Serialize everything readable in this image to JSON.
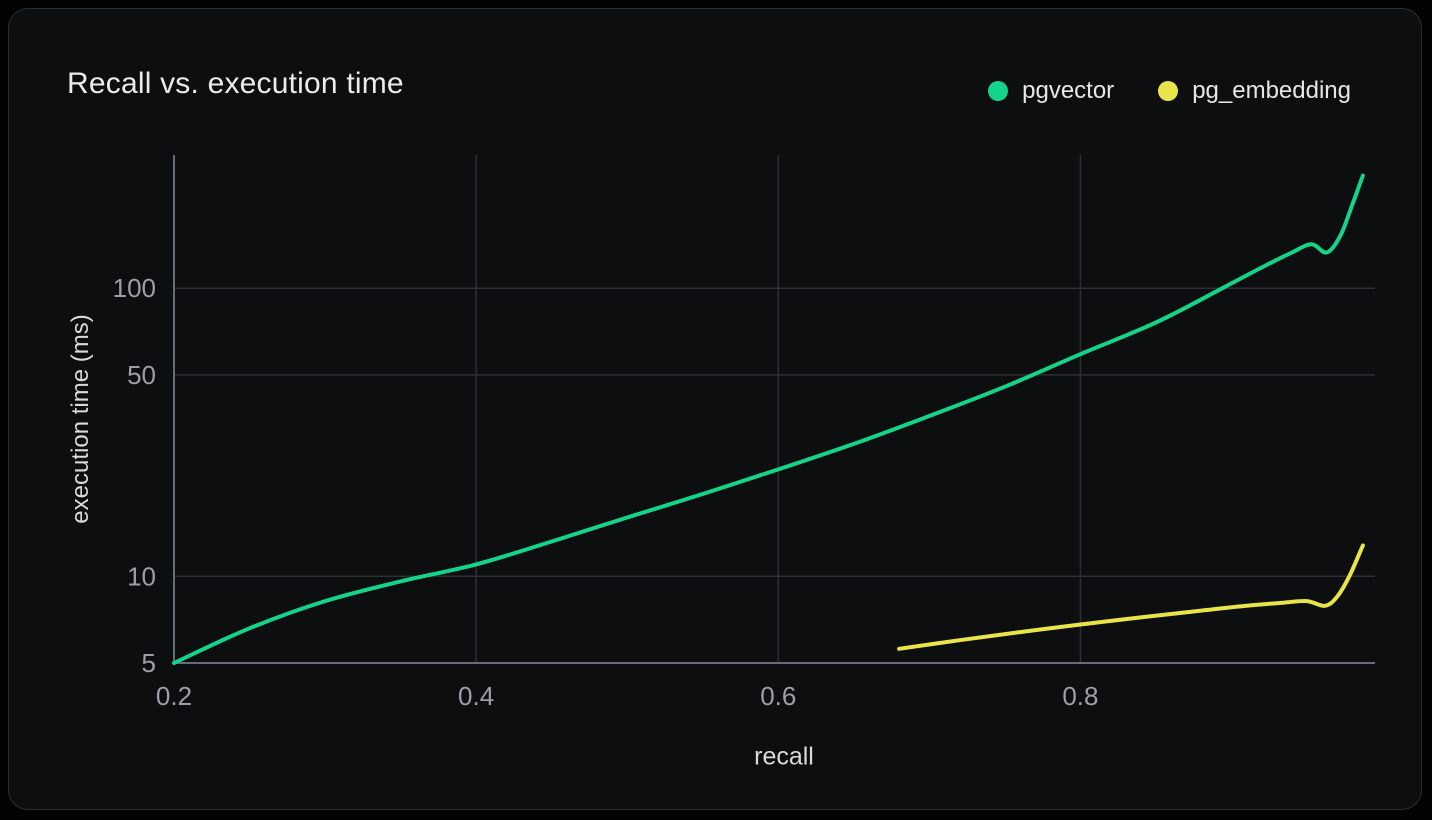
{
  "header": {
    "title": "Recall vs. execution time"
  },
  "legend": [
    {
      "label": "pgvector",
      "color": "#14d38b"
    },
    {
      "label": "pg_embedding",
      "color": "#e9e448"
    }
  ],
  "colors": {
    "page_background": "#030303",
    "card_background": "#0d0e0f",
    "card_border": "#2b2e31",
    "grid": "#2d3034",
    "axis": "#666d75",
    "tick_text": "#9aa0a6",
    "axis_title_text": "#d8dadc",
    "title_text": "#e9ebec"
  },
  "chart_data": {
    "type": "line",
    "title": "Recall vs. execution time",
    "xlabel": "recall",
    "ylabel": "execution time (ms)",
    "x_scale": "linear",
    "y_scale": "log",
    "xlim": [
      0.2,
      0.995
    ],
    "ylim": [
      5,
      290
    ],
    "x_ticks": [
      0.2,
      0.4,
      0.6,
      0.8
    ],
    "x_tick_labels": [
      "0.2",
      "0.4",
      "0.6",
      "0.8"
    ],
    "y_ticks": [
      5,
      10,
      50,
      100
    ],
    "y_tick_labels": [
      "5",
      "10",
      "50",
      "100"
    ],
    "grid": true,
    "legend_position": "top-right",
    "series": [
      {
        "name": "pgvector",
        "color": "#14d38b",
        "points": [
          [
            0.2,
            5.0
          ],
          [
            0.25,
            6.6
          ],
          [
            0.3,
            8.2
          ],
          [
            0.35,
            9.6
          ],
          [
            0.4,
            11.0
          ],
          [
            0.45,
            13.2
          ],
          [
            0.5,
            16.0
          ],
          [
            0.55,
            19.3
          ],
          [
            0.6,
            23.5
          ],
          [
            0.65,
            28.8
          ],
          [
            0.7,
            36.0
          ],
          [
            0.75,
            45.5
          ],
          [
            0.8,
            59.0
          ],
          [
            0.85,
            76.0
          ],
          [
            0.894,
            100.0
          ],
          [
            0.92,
            118.0
          ],
          [
            0.94,
            133.0
          ],
          [
            0.953,
            142.0
          ],
          [
            0.963,
            133.0
          ],
          [
            0.972,
            152.0
          ],
          [
            0.98,
            195.0
          ],
          [
            0.987,
            246.0
          ]
        ]
      },
      {
        "name": "pg_embedding",
        "color": "#e9e448",
        "points": [
          [
            0.68,
            5.6
          ],
          [
            0.72,
            6.0
          ],
          [
            0.76,
            6.4
          ],
          [
            0.8,
            6.8
          ],
          [
            0.84,
            7.2
          ],
          [
            0.88,
            7.6
          ],
          [
            0.91,
            7.9
          ],
          [
            0.935,
            8.1
          ],
          [
            0.95,
            8.2
          ],
          [
            0.962,
            7.9
          ],
          [
            0.97,
            8.5
          ],
          [
            0.978,
            10.0
          ],
          [
            0.987,
            12.8
          ]
        ]
      }
    ]
  }
}
